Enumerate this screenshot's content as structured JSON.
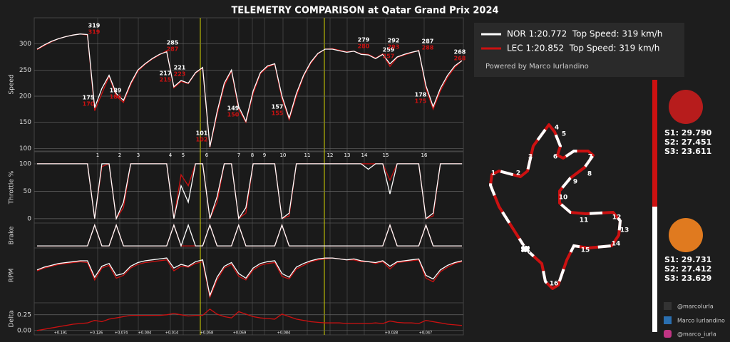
{
  "title": "TELEMETRY COMPARISON at Qatar Grand Prix 2024",
  "powered_by": "Powered by Marco Iurlandino",
  "corners": [
    1,
    2,
    3,
    4,
    5,
    6,
    7,
    8,
    9,
    10,
    11,
    12,
    13,
    14,
    15,
    16
  ],
  "delta_labels": [
    "+0.191",
    "+0.126",
    "+0.074",
    "+0.004",
    "+0.014",
    "+0.058",
    "+0.059",
    "+0.084",
    "+0.028",
    "+0.047"
  ],
  "sectors": {
    "lec": [
      "S1: 29.790",
      "S2: 27.451",
      "S3: 23.611"
    ],
    "nor": [
      "S1: 29.731",
      "S2: 27.412",
      "S3: 23.629"
    ]
  },
  "socials": [
    "@marcolurla",
    "Marco Iurlandino",
    "@marco_iurla"
  ],
  "chart_data": [
    {
      "type": "line",
      "ylabel": "Speed",
      "ylim": [
        95,
        350
      ],
      "yticks": [
        100,
        150,
        200,
        250,
        300
      ],
      "grid": true,
      "categories": [
        null,
        null,
        null,
        null,
        null,
        null,
        null,
        null,
        null,
        null,
        null,
        null,
        null,
        null,
        null,
        null,
        null,
        null,
        null,
        null,
        null,
        null,
        null,
        null,
        null,
        null,
        null,
        null,
        null,
        null,
        null,
        null,
        null,
        null,
        null,
        null,
        null,
        null,
        null,
        null,
        null,
        null,
        null,
        null,
        null,
        null,
        null,
        null,
        null,
        null,
        null,
        null,
        null,
        null,
        null,
        null,
        null,
        null,
        null,
        null
      ],
      "series": [
        {
          "name": "NOR 1:20.772  Top Speed: 319 km/h",
          "color": "#ffffff",
          "values": [
            290,
            298,
            305,
            310,
            314,
            317,
            319,
            318,
            178,
            215,
            240,
            205,
            192,
            225,
            250,
            262,
            272,
            280,
            285,
            218,
            230,
            225,
            245,
            255,
            103,
            170,
            225,
            250,
            180,
            152,
            210,
            245,
            258,
            262,
            200,
            158,
            205,
            240,
            265,
            282,
            290,
            290,
            287,
            284,
            286,
            280,
            279,
            272,
            280,
            262,
            275,
            280,
            284,
            287,
            220,
            180,
            215,
            240,
            258,
            268
          ]
        },
        {
          "name": "LEC 1:20.852  Top Speed: 319 km/h",
          "color": "#cc1111",
          "values": [
            289,
            297,
            304,
            310,
            314,
            317,
            319,
            317,
            172,
            205,
            238,
            200,
            188,
            222,
            248,
            261,
            271,
            279,
            287,
            216,
            228,
            224,
            244,
            254,
            102,
            165,
            220,
            248,
            175,
            150,
            205,
            243,
            256,
            261,
            195,
            155,
            200,
            238,
            263,
            281,
            290,
            291,
            288,
            285,
            286,
            281,
            280,
            273,
            281,
            257,
            274,
            279,
            283,
            288,
            215,
            175,
            210,
            236,
            255,
            268
          ]
        }
      ],
      "annotations": [
        {
          "nor": 319,
          "lec": 319
        },
        {
          "nor": 175,
          "lec": 170
        },
        {
          "nor": 189,
          "lec": 186
        },
        {
          "nor": 285,
          "lec": 287
        },
        {
          "nor": 217,
          "lec": 215
        },
        {
          "nor": 221,
          "lec": 223
        },
        {
          "nor": 101,
          "lec": 102
        },
        {
          "nor": 149,
          "lec": 150
        },
        {
          "nor": 157,
          "lec": 155
        },
        {
          "nor": 279,
          "lec": 280
        },
        {
          "nor": 259,
          "lec": 257
        },
        {
          "nor": 292,
          "lec": 293
        },
        {
          "nor": 287,
          "lec": 288
        },
        {
          "nor": 178,
          "lec": 175
        },
        {
          "nor": 268,
          "lec": 268
        }
      ]
    },
    {
      "type": "line",
      "ylabel": "Throttle %",
      "ylim": [
        -8,
        122
      ],
      "yticks": [
        0,
        50,
        100
      ],
      "grid": true,
      "categories": [
        null,
        null,
        null,
        null,
        null,
        null,
        null,
        null,
        null,
        null,
        null,
        null,
        null,
        null,
        null,
        null,
        null,
        null,
        null,
        null,
        null,
        null,
        null,
        null,
        null,
        null,
        null,
        null,
        null,
        null,
        null,
        null,
        null,
        null,
        null,
        null,
        null,
        null,
        null,
        null,
        null,
        null,
        null,
        null,
        null,
        null,
        null,
        null,
        null,
        null,
        null,
        null,
        null,
        null,
        null,
        null,
        null,
        null,
        null,
        null
      ],
      "series": [
        {
          "color": "#ffffff",
          "values": [
            100,
            100,
            100,
            100,
            100,
            100,
            100,
            100,
            0,
            100,
            100,
            0,
            30,
            100,
            100,
            100,
            100,
            100,
            100,
            0,
            60,
            30,
            100,
            100,
            0,
            40,
            100,
            100,
            0,
            20,
            100,
            100,
            100,
            100,
            0,
            10,
            100,
            100,
            100,
            100,
            100,
            100,
            100,
            100,
            100,
            100,
            90,
            100,
            100,
            45,
            100,
            100,
            100,
            100,
            0,
            10,
            100,
            100,
            100,
            100
          ]
        },
        {
          "color": "#cc1111",
          "values": [
            100,
            100,
            100,
            100,
            100,
            100,
            100,
            100,
            0,
            95,
            100,
            0,
            20,
            100,
            100,
            100,
            100,
            100,
            100,
            0,
            80,
            60,
            100,
            100,
            0,
            30,
            100,
            100,
            0,
            10,
            100,
            100,
            100,
            100,
            0,
            5,
            100,
            100,
            100,
            100,
            100,
            100,
            100,
            100,
            100,
            100,
            100,
            100,
            100,
            70,
            100,
            100,
            100,
            100,
            0,
            5,
            100,
            100,
            100,
            100
          ]
        }
      ]
    },
    {
      "type": "line",
      "ylabel": "Brake",
      "ylim": [
        -0.1,
        1.1
      ],
      "grid": false,
      "categories": [
        null,
        null,
        null,
        null,
        null,
        null,
        null,
        null,
        null,
        null,
        null,
        null,
        null,
        null,
        null,
        null,
        null,
        null,
        null,
        null,
        null,
        null,
        null,
        null,
        null,
        null,
        null,
        null,
        null,
        null,
        null,
        null,
        null,
        null,
        null,
        null,
        null,
        null,
        null,
        null,
        null,
        null,
        null,
        null,
        null,
        null,
        null,
        null,
        null,
        null,
        null,
        null,
        null,
        null,
        null,
        null,
        null,
        null,
        null,
        null
      ],
      "series": [
        {
          "color": "#ffffff",
          "values": [
            0,
            0,
            0,
            0,
            0,
            0,
            0,
            0,
            1,
            0,
            0,
            1,
            0,
            0,
            0,
            0,
            0,
            0,
            0,
            1,
            0,
            1,
            0,
            0,
            1,
            0,
            0,
            0,
            1,
            0,
            0,
            0,
            0,
            0,
            1,
            0,
            0,
            0,
            0,
            0,
            0,
            0,
            0,
            0,
            0,
            0,
            0,
            0,
            0,
            1,
            0,
            0,
            0,
            0,
            1,
            0,
            0,
            0,
            0,
            0
          ]
        },
        {
          "color": "#cc1111",
          "values": [
            0,
            0,
            0,
            0,
            0,
            0,
            0,
            0,
            1,
            0,
            0,
            1,
            0,
            0,
            0,
            0,
            0,
            0,
            0,
            1,
            0,
            0,
            0,
            0,
            1,
            0,
            0,
            0,
            1,
            0,
            0,
            0,
            0,
            0,
            1,
            0,
            0,
            0,
            0,
            0,
            0,
            0,
            0,
            0,
            0,
            0,
            0,
            0,
            0,
            1,
            0,
            0,
            0,
            0,
            1,
            0,
            0,
            0,
            0,
            0
          ]
        }
      ]
    },
    {
      "type": "line",
      "ylabel": "RPM",
      "ylim": [
        7000,
        13000
      ],
      "grid": false,
      "categories": [
        null,
        null,
        null,
        null,
        null,
        null,
        null,
        null,
        null,
        null,
        null,
        null,
        null,
        null,
        null,
        null,
        null,
        null,
        null,
        null,
        null,
        null,
        null,
        null,
        null,
        null,
        null,
        null,
        null,
        null,
        null,
        null,
        null,
        null,
        null,
        null,
        null,
        null,
        null,
        null,
        null,
        null,
        null,
        null,
        null,
        null,
        null,
        null,
        null,
        null,
        null,
        null,
        null,
        null,
        null,
        null,
        null,
        null,
        null,
        null
      ],
      "series": [
        {
          "color": "#ffffff",
          "values": [
            10600,
            10900,
            11100,
            11300,
            11400,
            11500,
            11600,
            11600,
            9800,
            11000,
            11300,
            10000,
            10200,
            11000,
            11400,
            11600,
            11700,
            11800,
            11900,
            10800,
            11200,
            11000,
            11500,
            11700,
            7800,
            9800,
            11000,
            11400,
            10200,
            9700,
            10800,
            11300,
            11500,
            11600,
            10200,
            9800,
            10900,
            11300,
            11600,
            11800,
            11900,
            11900,
            11800,
            11700,
            11800,
            11600,
            11500,
            11400,
            11600,
            11000,
            11500,
            11600,
            11700,
            11800,
            10000,
            9600,
            10600,
            11100,
            11400,
            11600
          ]
        },
        {
          "color": "#cc1111",
          "values": [
            10500,
            10800,
            11000,
            11200,
            11300,
            11400,
            11500,
            11400,
            9500,
            10800,
            11100,
            9700,
            10000,
            10800,
            11200,
            11400,
            11500,
            11600,
            11700,
            10500,
            11000,
            10900,
            11300,
            11500,
            7600,
            9500,
            10800,
            11200,
            9900,
            9500,
            10600,
            11100,
            11300,
            11400,
            9900,
            9600,
            10700,
            11100,
            11500,
            11700,
            11800,
            11900,
            11800,
            11700,
            11700,
            11500,
            11500,
            11300,
            11500,
            10700,
            11400,
            11500,
            11600,
            11700,
            9700,
            9300,
            10400,
            10900,
            11300,
            11500
          ]
        }
      ]
    },
    {
      "type": "line",
      "ylabel": "Delta",
      "ylim": [
        -0.07,
        0.44
      ],
      "yticks": [
        {
          "value": 0,
          "label": "0.00"
        },
        {
          "value": 0.25,
          "label": "0.25"
        }
      ],
      "grid": true,
      "categories": [
        null,
        null,
        null,
        null,
        null,
        null,
        null,
        null,
        null,
        null,
        null,
        null,
        null,
        null,
        null,
        null,
        null,
        null,
        null,
        null,
        null,
        null,
        null,
        null,
        null,
        null,
        null,
        null,
        null,
        null,
        null,
        null,
        null,
        null,
        null,
        null,
        null,
        null,
        null,
        null,
        null,
        null,
        null,
        null,
        null,
        null,
        null,
        null,
        null,
        null,
        null,
        null,
        null,
        null,
        null,
        null,
        null,
        null,
        null,
        null
      ],
      "series": [
        {
          "color": "#cc1111",
          "values": [
            0,
            0.02,
            0.04,
            0.06,
            0.08,
            0.1,
            0.11,
            0.12,
            0.16,
            0.14,
            0.18,
            0.2,
            0.22,
            0.24,
            0.24,
            0.24,
            0.24,
            0.24,
            0.25,
            0.27,
            0.25,
            0.23,
            0.24,
            0.24,
            0.34,
            0.26,
            0.22,
            0.2,
            0.3,
            0.26,
            0.22,
            0.2,
            0.19,
            0.18,
            0.26,
            0.22,
            0.18,
            0.16,
            0.14,
            0.13,
            0.12,
            0.12,
            0.12,
            0.11,
            0.11,
            0.11,
            0.11,
            0.12,
            0.11,
            0.15,
            0.13,
            0.12,
            0.12,
            0.11,
            0.16,
            0.14,
            0.12,
            0.1,
            0.09,
            0.08
          ]
        }
      ]
    }
  ]
}
